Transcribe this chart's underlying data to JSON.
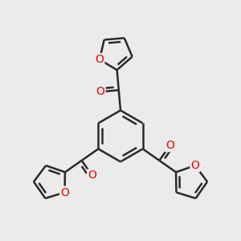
{
  "background_color": "#ebebeb",
  "bond_color": "#2a2a2a",
  "oxygen_color": "#ee0000",
  "line_width": 1.8,
  "figsize": [
    3.0,
    3.0
  ],
  "dpi": 100,
  "xlim": [
    -1.6,
    1.6
  ],
  "ylim": [
    -1.7,
    1.8
  ]
}
